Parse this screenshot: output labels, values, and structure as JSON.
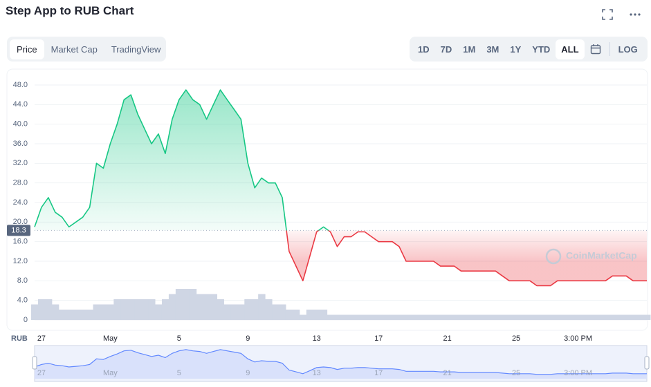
{
  "header": {
    "title": "Step App to RUB Chart",
    "tabs": [
      "Price",
      "Market Cap",
      "TradingView"
    ],
    "active_tab": "Price",
    "ranges": [
      "1D",
      "7D",
      "1M",
      "3M",
      "1Y",
      "YTD",
      "ALL"
    ],
    "active_range": "ALL",
    "log": "LOG"
  },
  "chart_data": {
    "type": "line",
    "currency": "RUB",
    "watermark": "CoinMarketCap",
    "categories": [
      null,
      "27",
      null,
      null,
      null,
      null,
      null,
      null,
      null,
      null,
      null,
      "May",
      null,
      null,
      null,
      null,
      null,
      null,
      null,
      null,
      null,
      "5",
      null,
      null,
      null,
      null,
      null,
      null,
      null,
      null,
      null,
      "9",
      null,
      null,
      null,
      null,
      null,
      null,
      null,
      null,
      null,
      "13",
      null,
      null,
      null,
      null,
      null,
      null,
      null,
      null,
      "17",
      null,
      null,
      null,
      null,
      null,
      null,
      null,
      null,
      null,
      "21",
      null,
      null,
      null,
      null,
      null,
      null,
      null,
      null,
      null,
      "25",
      null,
      null,
      null,
      null,
      null,
      null,
      null,
      null,
      "3:00 PM",
      null,
      null,
      null,
      null,
      null,
      null,
      null,
      null,
      null,
      null
    ],
    "values": [
      19,
      23,
      25,
      22,
      21,
      19,
      20,
      21,
      23,
      32,
      31,
      36,
      40,
      45,
      46,
      42,
      39,
      36,
      38,
      34,
      41,
      45,
      47,
      45,
      44,
      41,
      44,
      47,
      45,
      43,
      41,
      32,
      27,
      29,
      28,
      28,
      25,
      14,
      11,
      8,
      13,
      18,
      19,
      18,
      15,
      17,
      17,
      18,
      18,
      17,
      16,
      16,
      16,
      15,
      12,
      12,
      12,
      12,
      12,
      11,
      11,
      11,
      10,
      10,
      10,
      10,
      10,
      10,
      9,
      8,
      8,
      8,
      8,
      7,
      7,
      7,
      8,
      8,
      8,
      8,
      8,
      8,
      8,
      8,
      9,
      9,
      9,
      8,
      8,
      8
    ],
    "volume": [
      3,
      4,
      4,
      3,
      2,
      2,
      2,
      2,
      2,
      3,
      3,
      3,
      4,
      4,
      4,
      4,
      4,
      4,
      3,
      4,
      5,
      6,
      6,
      6,
      5,
      5,
      5,
      4,
      3,
      3,
      3,
      4,
      4,
      5,
      4,
      3,
      3,
      2,
      2,
      1,
      2,
      2,
      2,
      1,
      1,
      1,
      1,
      1,
      1,
      1,
      1,
      1,
      1,
      1,
      1,
      1,
      1,
      1,
      1,
      1,
      1,
      1,
      1,
      1,
      1,
      1,
      1,
      1,
      1,
      1,
      1,
      1,
      1,
      1,
      1,
      1,
      1,
      1,
      1,
      1,
      1,
      1,
      1,
      1,
      1,
      1,
      1,
      1,
      1,
      1
    ],
    "reference": 18.3,
    "up_color": "#16c784",
    "down_color": "#ea3943",
    "volume_color": "#cfd6e4",
    "ylim": [
      0,
      48
    ],
    "yticks": [
      0,
      {
        "value": 4,
        "label": "4.0"
      },
      {
        "value": 8,
        "label": "8.0"
      },
      {
        "value": 12,
        "label": "12.0"
      },
      {
        "value": 16,
        "label": "16.0"
      },
      {
        "value": 20,
        "label": "20.0"
      },
      {
        "value": 24,
        "label": "24.0"
      },
      {
        "value": 28,
        "label": "28.0"
      },
      {
        "value": 32,
        "label": "32.0"
      },
      {
        "value": 36,
        "label": "36.0"
      },
      {
        "value": 40,
        "label": "40.0"
      },
      {
        "value": 44,
        "label": "44.0"
      },
      {
        "value": 48,
        "label": "48.0"
      }
    ],
    "grid": true
  }
}
